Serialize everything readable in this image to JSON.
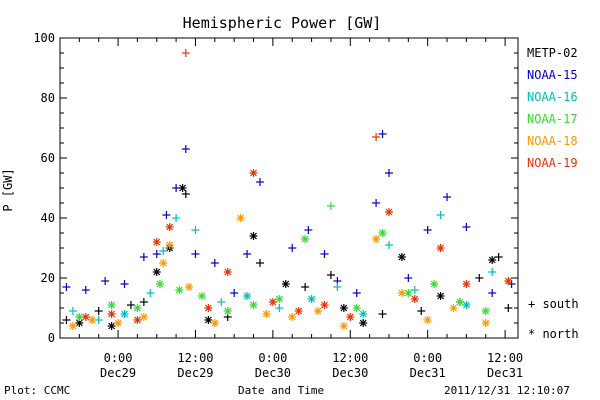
{
  "chart_data": {
    "type": "scatter",
    "title": "Hemispheric Power [GW]",
    "ylabel": "P [GW]",
    "xlabel": "Date and Time",
    "ylim": [
      0,
      100
    ],
    "y_ticks": [
      0,
      20,
      40,
      60,
      80,
      100
    ],
    "xlim": [
      "2011-12-28T15:00",
      "2011-12-31T14:00"
    ],
    "x_ticks": [
      {
        "t": "2011-12-29T00:00",
        "line1": "0:00",
        "line2": "Dec29"
      },
      {
        "t": "2011-12-29T12:00",
        "line1": "12:00",
        "line2": "Dec29"
      },
      {
        "t": "2011-12-30T00:00",
        "line1": "0:00",
        "line2": "Dec30"
      },
      {
        "t": "2011-12-30T12:00",
        "line1": "12:00",
        "line2": "Dec30"
      },
      {
        "t": "2011-12-31T00:00",
        "line1": "0:00",
        "line2": "Dec31"
      },
      {
        "t": "2011-12-31T12:00",
        "line1": "12:00",
        "line2": "Dec31"
      }
    ],
    "grid": false,
    "legend_position": "right",
    "marker_legend": [
      {
        "symbol": "+",
        "label": "south"
      },
      {
        "symbol": "*",
        "label": "north"
      }
    ],
    "series": [
      {
        "name": "METP-02",
        "color": "#000000",
        "points": [
          {
            "t": "2011-12-28T16:00",
            "y": 6,
            "m": "+"
          },
          {
            "t": "2011-12-28T18:00",
            "y": 5,
            "m": "*"
          },
          {
            "t": "2011-12-28T21:00",
            "y": 9,
            "m": "+"
          },
          {
            "t": "2011-12-28T23:00",
            "y": 4,
            "m": "*"
          },
          {
            "t": "2011-12-29T02:00",
            "y": 11,
            "m": "+"
          },
          {
            "t": "2011-12-29T04:00",
            "y": 12,
            "m": "+"
          },
          {
            "t": "2011-12-29T06:00",
            "y": 22,
            "m": "*"
          },
          {
            "t": "2011-12-29T08:00",
            "y": 30,
            "m": "*"
          },
          {
            "t": "2011-12-29T10:00",
            "y": 50,
            "m": "*"
          },
          {
            "t": "2011-12-29T10:30",
            "y": 48,
            "m": "+"
          },
          {
            "t": "2011-12-29T14:00",
            "y": 6,
            "m": "*"
          },
          {
            "t": "2011-12-29T17:00",
            "y": 7,
            "m": "+"
          },
          {
            "t": "2011-12-29T21:00",
            "y": 34,
            "m": "*"
          },
          {
            "t": "2011-12-29T22:00",
            "y": 25,
            "m": "+"
          },
          {
            "t": "2011-12-30T02:00",
            "y": 18,
            "m": "*"
          },
          {
            "t": "2011-12-30T05:00",
            "y": 17,
            "m": "+"
          },
          {
            "t": "2011-12-30T09:00",
            "y": 21,
            "m": "+"
          },
          {
            "t": "2011-12-30T11:00",
            "y": 10,
            "m": "*"
          },
          {
            "t": "2011-12-30T14:00",
            "y": 5,
            "m": "*"
          },
          {
            "t": "2011-12-30T17:00",
            "y": 8,
            "m": "+"
          },
          {
            "t": "2011-12-30T20:00",
            "y": 27,
            "m": "*"
          },
          {
            "t": "2011-12-30T23:00",
            "y": 9,
            "m": "+"
          },
          {
            "t": "2011-12-31T02:00",
            "y": 14,
            "m": "*"
          },
          {
            "t": "2011-12-31T05:00",
            "y": 12,
            "m": "+"
          },
          {
            "t": "2011-12-31T08:00",
            "y": 20,
            "m": "+"
          },
          {
            "t": "2011-12-31T10:00",
            "y": 26,
            "m": "*"
          },
          {
            "t": "2011-12-31T11:00",
            "y": 27,
            "m": "+"
          },
          {
            "t": "2011-12-31T12:30",
            "y": 10,
            "m": "+"
          }
        ]
      },
      {
        "name": "NOAA-15",
        "color": "#0000c8",
        "points": [
          {
            "t": "2011-12-28T16:00",
            "y": 17,
            "m": "+"
          },
          {
            "t": "2011-12-28T19:00",
            "y": 16,
            "m": "+"
          },
          {
            "t": "2011-12-28T22:00",
            "y": 19,
            "m": "+"
          },
          {
            "t": "2011-12-29T01:00",
            "y": 18,
            "m": "+"
          },
          {
            "t": "2011-12-29T04:00",
            "y": 27,
            "m": "+"
          },
          {
            "t": "2011-12-29T06:00",
            "y": 28,
            "m": "+"
          },
          {
            "t": "2011-12-29T07:30",
            "y": 41,
            "m": "+"
          },
          {
            "t": "2011-12-29T09:00",
            "y": 50,
            "m": "+"
          },
          {
            "t": "2011-12-29T10:30",
            "y": 63,
            "m": "+"
          },
          {
            "t": "2011-12-29T12:00",
            "y": 28,
            "m": "+"
          },
          {
            "t": "2011-12-29T15:00",
            "y": 25,
            "m": "+"
          },
          {
            "t": "2011-12-29T18:00",
            "y": 15,
            "m": "+"
          },
          {
            "t": "2011-12-29T20:00",
            "y": 28,
            "m": "+"
          },
          {
            "t": "2011-12-29T22:00",
            "y": 52,
            "m": "+"
          },
          {
            "t": "2011-12-30T03:00",
            "y": 30,
            "m": "+"
          },
          {
            "t": "2011-12-30T05:30",
            "y": 36,
            "m": "+"
          },
          {
            "t": "2011-12-30T08:00",
            "y": 28,
            "m": "+"
          },
          {
            "t": "2011-12-30T10:00",
            "y": 19,
            "m": "+"
          },
          {
            "t": "2011-12-30T13:00",
            "y": 15,
            "m": "+"
          },
          {
            "t": "2011-12-30T16:00",
            "y": 45,
            "m": "+"
          },
          {
            "t": "2011-12-30T17:00",
            "y": 68,
            "m": "+"
          },
          {
            "t": "2011-12-30T18:00",
            "y": 55,
            "m": "+"
          },
          {
            "t": "2011-12-30T21:00",
            "y": 20,
            "m": "+"
          },
          {
            "t": "2011-12-31T00:00",
            "y": 36,
            "m": "+"
          },
          {
            "t": "2011-12-31T03:00",
            "y": 47,
            "m": "+"
          },
          {
            "t": "2011-12-31T06:00",
            "y": 37,
            "m": "+"
          },
          {
            "t": "2011-12-31T10:00",
            "y": 15,
            "m": "+"
          },
          {
            "t": "2011-12-31T13:00",
            "y": 18,
            "m": "+"
          }
        ]
      },
      {
        "name": "NOAA-16",
        "color": "#00bebe",
        "points": [
          {
            "t": "2011-12-28T17:00",
            "y": 9,
            "m": "+"
          },
          {
            "t": "2011-12-28T21:00",
            "y": 6,
            "m": "+"
          },
          {
            "t": "2011-12-29T01:00",
            "y": 8,
            "m": "*"
          },
          {
            "t": "2011-12-29T05:00",
            "y": 15,
            "m": "+"
          },
          {
            "t": "2011-12-29T07:00",
            "y": 29,
            "m": "+"
          },
          {
            "t": "2011-12-29T09:00",
            "y": 40,
            "m": "+"
          },
          {
            "t": "2011-12-29T12:00",
            "y": 36,
            "m": "+"
          },
          {
            "t": "2011-12-29T16:00",
            "y": 12,
            "m": "+"
          },
          {
            "t": "2011-12-29T20:00",
            "y": 14,
            "m": "*"
          },
          {
            "t": "2011-12-30T01:00",
            "y": 10,
            "m": "+"
          },
          {
            "t": "2011-12-30T06:00",
            "y": 13,
            "m": "*"
          },
          {
            "t": "2011-12-30T10:00",
            "y": 17,
            "m": "+"
          },
          {
            "t": "2011-12-30T14:00",
            "y": 8,
            "m": "*"
          },
          {
            "t": "2011-12-30T18:00",
            "y": 31,
            "m": "+"
          },
          {
            "t": "2011-12-30T22:00",
            "y": 16,
            "m": "+"
          },
          {
            "t": "2011-12-31T02:00",
            "y": 41,
            "m": "+"
          },
          {
            "t": "2011-12-31T06:00",
            "y": 11,
            "m": "*"
          },
          {
            "t": "2011-12-31T10:00",
            "y": 22,
            "m": "+"
          }
        ]
      },
      {
        "name": "NOAA-17",
        "color": "#32dc32",
        "points": [
          {
            "t": "2011-12-28T18:00",
            "y": 7,
            "m": "*"
          },
          {
            "t": "2011-12-28T23:00",
            "y": 11,
            "m": "*"
          },
          {
            "t": "2011-12-29T03:00",
            "y": 10,
            "m": "*"
          },
          {
            "t": "2011-12-29T06:30",
            "y": 18,
            "m": "*"
          },
          {
            "t": "2011-12-29T09:30",
            "y": 16,
            "m": "*"
          },
          {
            "t": "2011-12-29T13:00",
            "y": 14,
            "m": "*"
          },
          {
            "t": "2011-12-29T17:00",
            "y": 9,
            "m": "*"
          },
          {
            "t": "2011-12-29T21:00",
            "y": 11,
            "m": "*"
          },
          {
            "t": "2011-12-30T01:00",
            "y": 13,
            "m": "*"
          },
          {
            "t": "2011-12-30T05:00",
            "y": 33,
            "m": "*"
          },
          {
            "t": "2011-12-30T09:00",
            "y": 44,
            "m": "+"
          },
          {
            "t": "2011-12-30T13:00",
            "y": 10,
            "m": "*"
          },
          {
            "t": "2011-12-30T17:00",
            "y": 35,
            "m": "*"
          },
          {
            "t": "2011-12-30T21:00",
            "y": 15,
            "m": "*"
          },
          {
            "t": "2011-12-31T01:00",
            "y": 18,
            "m": "*"
          },
          {
            "t": "2011-12-31T05:00",
            "y": 12,
            "m": "*"
          },
          {
            "t": "2011-12-31T09:00",
            "y": 9,
            "m": "*"
          }
        ]
      },
      {
        "name": "NOAA-18",
        "color": "#ff9600",
        "points": [
          {
            "t": "2011-12-28T17:00",
            "y": 4,
            "m": "*"
          },
          {
            "t": "2011-12-28T20:00",
            "y": 6,
            "m": "*"
          },
          {
            "t": "2011-12-29T00:00",
            "y": 5,
            "m": "*"
          },
          {
            "t": "2011-12-29T04:00",
            "y": 7,
            "m": "*"
          },
          {
            "t": "2011-12-29T07:00",
            "y": 25,
            "m": "*"
          },
          {
            "t": "2011-12-29T08:00",
            "y": 31,
            "m": "*"
          },
          {
            "t": "2011-12-29T11:00",
            "y": 17,
            "m": "*"
          },
          {
            "t": "2011-12-29T15:00",
            "y": 5,
            "m": "*"
          },
          {
            "t": "2011-12-29T19:00",
            "y": 40,
            "m": "*"
          },
          {
            "t": "2011-12-29T23:00",
            "y": 8,
            "m": "*"
          },
          {
            "t": "2011-12-30T03:00",
            "y": 7,
            "m": "*"
          },
          {
            "t": "2011-12-30T07:00",
            "y": 9,
            "m": "*"
          },
          {
            "t": "2011-12-30T11:00",
            "y": 4,
            "m": "*"
          },
          {
            "t": "2011-12-30T16:00",
            "y": 33,
            "m": "*"
          },
          {
            "t": "2011-12-30T20:00",
            "y": 15,
            "m": "*"
          },
          {
            "t": "2011-12-31T00:00",
            "y": 6,
            "m": "*"
          },
          {
            "t": "2011-12-31T04:00",
            "y": 10,
            "m": "*"
          },
          {
            "t": "2011-12-31T09:00",
            "y": 5,
            "m": "*"
          }
        ]
      },
      {
        "name": "NOAA-19",
        "color": "#e63200",
        "points": [
          {
            "t": "2011-12-28T19:00",
            "y": 7,
            "m": "*"
          },
          {
            "t": "2011-12-28T23:00",
            "y": 8,
            "m": "*"
          },
          {
            "t": "2011-12-29T03:00",
            "y": 6,
            "m": "*"
          },
          {
            "t": "2011-12-29T06:00",
            "y": 32,
            "m": "*"
          },
          {
            "t": "2011-12-29T08:00",
            "y": 37,
            "m": "*"
          },
          {
            "t": "2011-12-29T10:30",
            "y": 95,
            "m": "+"
          },
          {
            "t": "2011-12-29T14:00",
            "y": 10,
            "m": "*"
          },
          {
            "t": "2011-12-29T17:00",
            "y": 22,
            "m": "*"
          },
          {
            "t": "2011-12-29T21:00",
            "y": 55,
            "m": "*"
          },
          {
            "t": "2011-12-30T00:00",
            "y": 12,
            "m": "*"
          },
          {
            "t": "2011-12-30T04:00",
            "y": 9,
            "m": "*"
          },
          {
            "t": "2011-12-30T08:00",
            "y": 11,
            "m": "*"
          },
          {
            "t": "2011-12-30T12:00",
            "y": 7,
            "m": "*"
          },
          {
            "t": "2011-12-30T16:00",
            "y": 67,
            "m": "+"
          },
          {
            "t": "2011-12-30T18:00",
            "y": 42,
            "m": "*"
          },
          {
            "t": "2011-12-30T22:00",
            "y": 13,
            "m": "*"
          },
          {
            "t": "2011-12-31T02:00",
            "y": 30,
            "m": "*"
          },
          {
            "t": "2011-12-31T06:00",
            "y": 18,
            "m": "*"
          },
          {
            "t": "2011-12-31T12:30",
            "y": 19,
            "m": "*"
          }
        ]
      }
    ]
  },
  "footer": {
    "left": "Plot: CCMC",
    "center": "Date and Time",
    "right": "2011/12/31 12:10:07"
  }
}
